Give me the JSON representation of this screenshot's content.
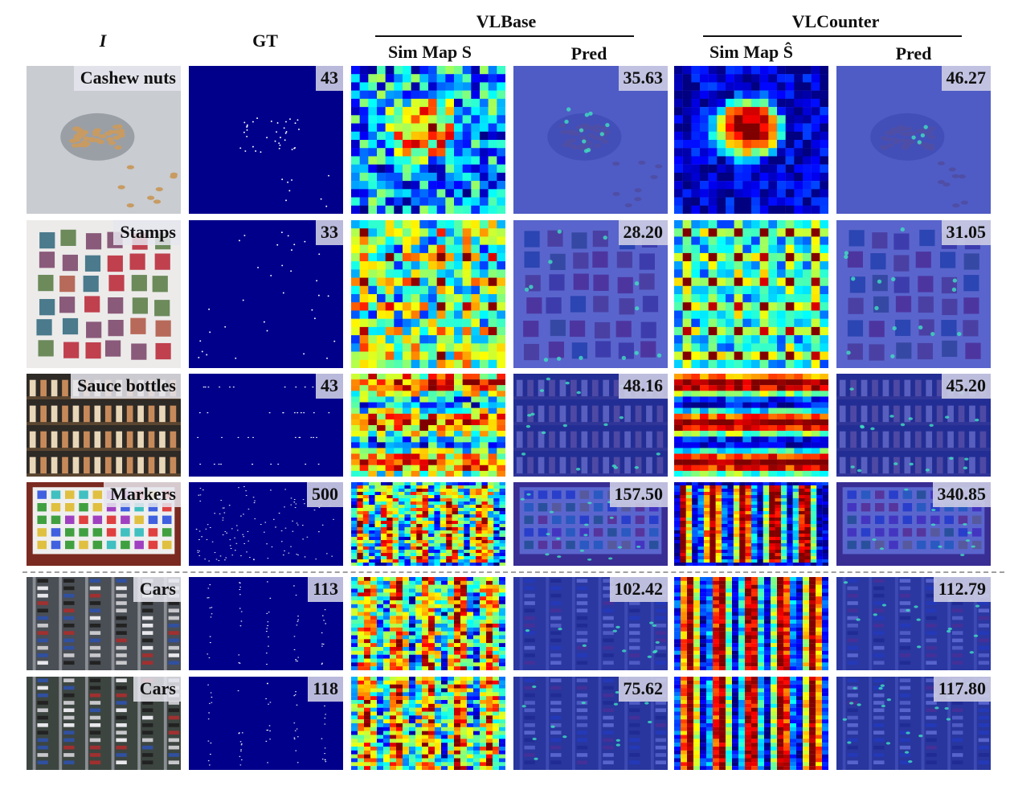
{
  "headers": {
    "image": "I",
    "gt": "GT",
    "vlbase": "VLBase",
    "vlcounter": "VLCounter",
    "sim_map_s": "Sim Map S",
    "sim_map_s_hat": "Sim Map Ŝ",
    "pred_1": "Pred",
    "pred_2": "Pred"
  },
  "rows": [
    {
      "label": "Cashew nuts",
      "gt": "43",
      "vlbase_pred": "35.63",
      "vlcounter_pred": "46.27"
    },
    {
      "label": "Stamps",
      "gt": "33",
      "vlbase_pred": "28.20",
      "vlcounter_pred": "31.05"
    },
    {
      "label": "Sauce bottles",
      "gt": "43",
      "vlbase_pred": "48.16",
      "vlcounter_pred": "45.20"
    },
    {
      "label": "Markers",
      "gt": "500",
      "vlbase_pred": "157.50",
      "vlcounter_pred": "340.85"
    },
    {
      "label": "Cars",
      "gt": "113",
      "vlbase_pred": "102.42",
      "vlcounter_pred": "112.79"
    },
    {
      "label": "Cars",
      "gt": "118",
      "vlbase_pred": "75.62",
      "vlcounter_pred": "117.80"
    }
  ],
  "colors": {
    "gt_background": "#00008b",
    "heatmap_low": "#00007f",
    "heatmap_high": "#b00000"
  }
}
